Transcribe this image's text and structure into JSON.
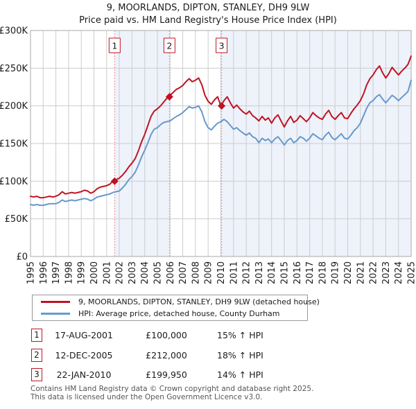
{
  "title": "9, MOORLANDS, DIPTON, STANLEY, DH9 9LW",
  "subtitle": "Price paid vs. HM Land Registry's House Price Index (HPI)",
  "colors": {
    "property_line": "#bf1322",
    "hpi_line": "#6699cc",
    "marker_dash_line": "#ec8b8b",
    "band_fill": "#eef2fa",
    "grid": "#cccccc",
    "plot_border": "#a8a8a8",
    "marker_box_border": "#bf1322",
    "axis_text": "#1a1a1a",
    "footer_text": "#555555"
  },
  "chart_data": {
    "type": "line",
    "title": "9, MOORLANDS, DIPTON, STANLEY, DH9 9LW",
    "subtitle": "Price paid vs. HM Land Registry's House Price Index (HPI)",
    "xlabel": "",
    "ylabel": "",
    "xlim": [
      1995,
      2025
    ],
    "ylim": [
      0,
      300000
    ],
    "grid": true,
    "x_start": 1995,
    "x_step_years": 0.25,
    "xtick_labels": [
      "1995",
      "1996",
      "1997",
      "1998",
      "1999",
      "2000",
      "2001",
      "2002",
      "2003",
      "2004",
      "2005",
      "2006",
      "2007",
      "2008",
      "2009",
      "2010",
      "2011",
      "2012",
      "2013",
      "2014",
      "2015",
      "2016",
      "2017",
      "2018",
      "2019",
      "2020",
      "2021",
      "2022",
      "2023",
      "2024",
      "2025"
    ],
    "ytick_values": [
      0,
      50000,
      100000,
      150000,
      200000,
      250000,
      300000
    ],
    "ytick_labels": [
      "£0",
      "£50K",
      "£100K",
      "£150K",
      "£200K",
      "£250K",
      "£300K"
    ],
    "series": [
      {
        "name": "9, MOORLANDS, DIPTON, STANLEY, DH9 9LW (detached house)",
        "color_key": "property_line",
        "values": [
          80000,
          79000,
          80000,
          78000,
          78000,
          79000,
          80000,
          79000,
          80000,
          82000,
          86000,
          83000,
          84000,
          85000,
          84000,
          85000,
          86000,
          88000,
          87000,
          84000,
          86000,
          90000,
          92000,
          93000,
          94000,
          96000,
          100000,
          102000,
          104000,
          108000,
          113000,
          119000,
          124000,
          130000,
          140000,
          152000,
          162000,
          174000,
          186000,
          193000,
          196000,
          200000,
          205000,
          210000,
          214000,
          218000,
          222000,
          224000,
          227000,
          232000,
          236000,
          232000,
          234000,
          237000,
          228000,
          214000,
          206000,
          202000,
          208000,
          212000,
          200000,
          207000,
          212000,
          204000,
          197000,
          201000,
          196000,
          192000,
          189000,
          193000,
          187000,
          184000,
          180000,
          186000,
          181000,
          184000,
          177000,
          184000,
          188000,
          180000,
          172000,
          180000,
          186000,
          178000,
          181000,
          187000,
          183000,
          179000,
          184000,
          191000,
          187000,
          184000,
          182000,
          189000,
          194000,
          186000,
          182000,
          187000,
          191000,
          184000,
          183000,
          190000,
          196000,
          201000,
          207000,
          216000,
          228000,
          236000,
          241000,
          248000,
          253000,
          244000,
          237000,
          243000,
          251000,
          246000,
          241000,
          246000,
          250000,
          255000,
          266000
        ]
      },
      {
        "name": "HPI: Average price, detached house, County Durham",
        "color_key": "hpi_line",
        "values": [
          69000,
          68000,
          69000,
          68000,
          68000,
          69000,
          70000,
          70000,
          70000,
          72000,
          75000,
          73000,
          74000,
          75000,
          74000,
          75000,
          76000,
          77000,
          76000,
          74000,
          76000,
          79000,
          80000,
          81000,
          82000,
          83000,
          85000,
          86000,
          87000,
          91000,
          96000,
          102000,
          106000,
          112000,
          121000,
          132000,
          141000,
          151000,
          162000,
          169000,
          171000,
          175000,
          178000,
          179000,
          180000,
          183000,
          186000,
          188000,
          191000,
          195000,
          199000,
          197000,
          198000,
          200000,
          192000,
          179000,
          171000,
          168000,
          173000,
          177000,
          179000,
          182000,
          179000,
          174000,
          169000,
          171000,
          167000,
          164000,
          161000,
          164000,
          159000,
          157000,
          151000,
          157000,
          154000,
          156000,
          151000,
          156000,
          159000,
          154000,
          148000,
          154000,
          157000,
          151000,
          154000,
          159000,
          157000,
          153000,
          157000,
          163000,
          160000,
          157000,
          155000,
          161000,
          165000,
          158000,
          155000,
          159000,
          163000,
          157000,
          156000,
          161000,
          167000,
          171000,
          177000,
          187000,
          197000,
          204000,
          207000,
          212000,
          215000,
          209000,
          204000,
          209000,
          214000,
          211000,
          207000,
          211000,
          215000,
          219000,
          234000
        ]
      }
    ],
    "sale_markers": [
      {
        "label": "1",
        "year": 2001.63,
        "price": 100000
      },
      {
        "label": "2",
        "year": 2005.95,
        "price": 212000
      },
      {
        "label": "3",
        "year": 2010.06,
        "price": 199950
      }
    ],
    "shaded_bands": [
      [
        2001.63,
        2005.95
      ],
      [
        2010.06,
        2025
      ]
    ]
  },
  "legend": {
    "items": [
      {
        "label": "9, MOORLANDS, DIPTON, STANLEY, DH9 9LW (detached house)",
        "color_key": "property_line"
      },
      {
        "label": "HPI: Average price, detached house, County Durham",
        "color_key": "hpi_line"
      }
    ]
  },
  "transactions": [
    {
      "num": "1",
      "date": "17-AUG-2001",
      "price": "£100,000",
      "hpi_change": "15% ↑ HPI"
    },
    {
      "num": "2",
      "date": "12-DEC-2005",
      "price": "£212,000",
      "hpi_change": "18% ↑ HPI"
    },
    {
      "num": "3",
      "date": "22-JAN-2010",
      "price": "£199,950",
      "hpi_change": "14% ↑ HPI"
    }
  ],
  "footer": {
    "line1": "Contains HM Land Registry data © Crown copyright and database right 2025.",
    "line2": "This data is licensed under the Open Government Licence v3.0."
  }
}
